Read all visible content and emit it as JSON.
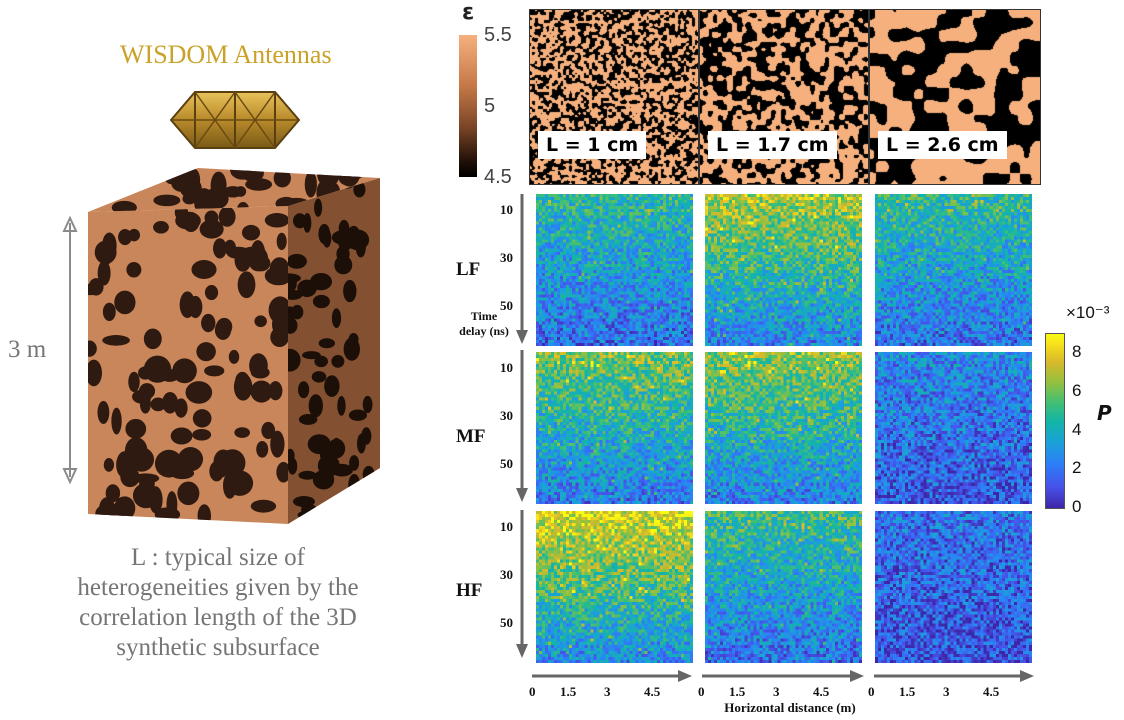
{
  "left_panel": {
    "antenna_title": "WISDOM Antennas",
    "height_label": "3 m",
    "description_lines": [
      "L : typical size of",
      "heterogeneities given by the",
      "correlation length of the 3D",
      "synthetic subsurface"
    ]
  },
  "permittivity": {
    "symbol": "ε",
    "ticks": [
      "5.5",
      "5",
      "4.5"
    ],
    "panels": [
      {
        "label": "L = 1 cm",
        "blob_scale": 1
      },
      {
        "label": "L = 1.7 cm",
        "blob_scale": 1.7
      },
      {
        "label": "L = 2.6 cm",
        "blob_scale": 2.6
      }
    ]
  },
  "heatmaps": {
    "rows": [
      "LF",
      "MF",
      "HF"
    ],
    "time_axis": {
      "title_line1": "Time",
      "title_line2": "delay (ns)",
      "ticks": [
        "10",
        "30",
        "50"
      ]
    },
    "x_axis": {
      "title": "Horizontal distance (m)",
      "ticks": [
        "0",
        "1.5",
        "3",
        "4.5"
      ]
    },
    "intensity": [
      [
        0.45,
        0.72,
        0.48
      ],
      [
        0.62,
        0.66,
        0.22
      ],
      [
        0.82,
        0.5,
        0.15
      ]
    ]
  },
  "colorbar": {
    "exponent_label": "×10⁻³",
    "variable": "P",
    "ticks": [
      "8",
      "6",
      "4",
      "2",
      "0"
    ],
    "range": [
      0,
      9
    ]
  },
  "colors": {
    "title_gold": "#c9a227",
    "text_gray": "#757575",
    "soil_light": "#c9865a",
    "soil_dark": "#2e1a10",
    "eps_light": "#f5b07e",
    "eps_dark": "#000000"
  }
}
